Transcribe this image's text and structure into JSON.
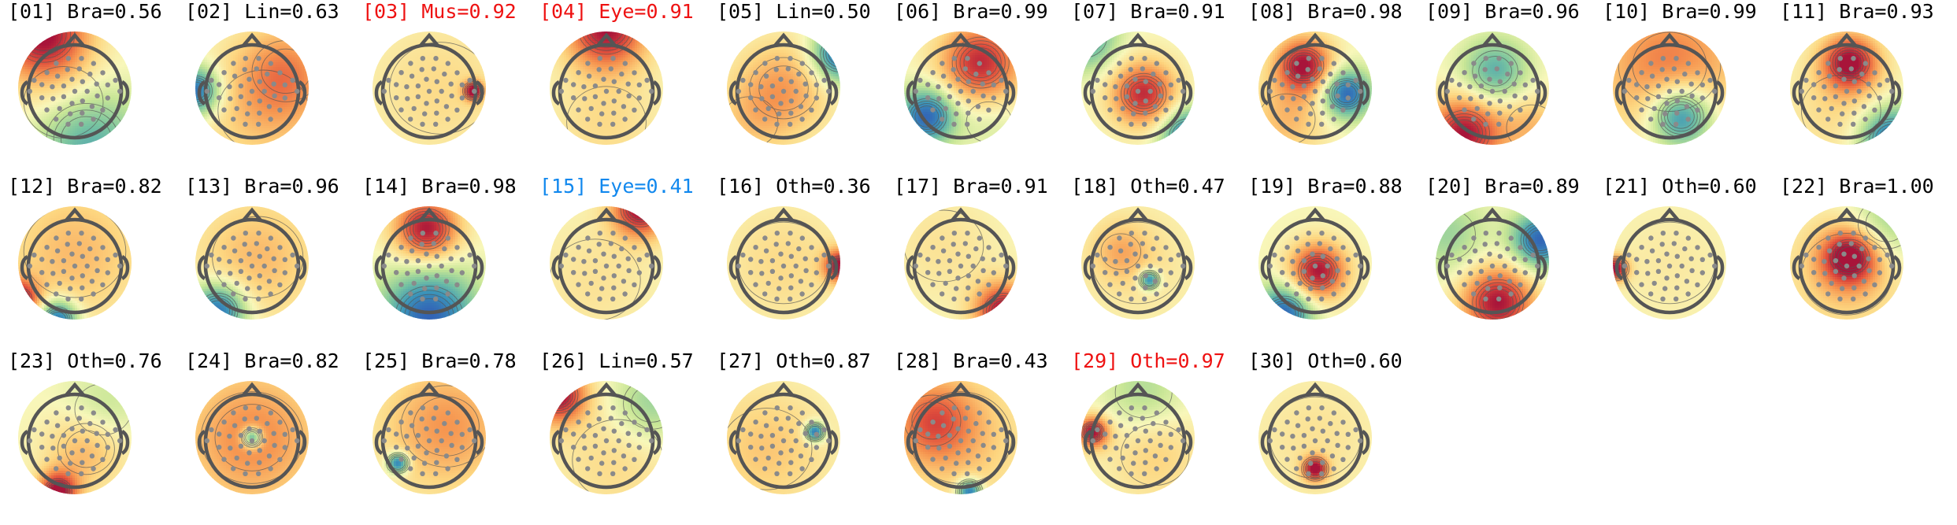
{
  "chart_data": {
    "type": "topomap-grid",
    "title": "",
    "colormap": "Spectral_r",
    "label_colors": {
      "default": "#000000",
      "red": "#ee1111",
      "blue": "#1188ee"
    },
    "components": [
      {
        "label": "[01] Bra=0.56",
        "color": "default",
        "blobs": [
          [
            -0.55,
            -0.95,
            0.55,
            1.0
          ],
          [
            0.2,
            0.9,
            0.7,
            -0.7
          ],
          [
            -0.2,
            0.25,
            0.7,
            0.25
          ]
        ]
      },
      {
        "label": "[02] Lin=0.63",
        "color": "default",
        "blobs": [
          [
            -1.0,
            0.05,
            0.3,
            -1.0
          ],
          [
            0.6,
            -0.3,
            0.6,
            0.45
          ],
          [
            0.2,
            0.4,
            0.8,
            0.3
          ]
        ]
      },
      {
        "label": "[03] Mus=0.92",
        "color": "red",
        "blobs": [
          [
            0.78,
            0.05,
            0.12,
            1.0
          ],
          [
            0.2,
            0,
            0.9,
            0.2
          ]
        ]
      },
      {
        "label": "[04] Eye=0.91",
        "color": "red",
        "blobs": [
          [
            0,
            -1.05,
            0.5,
            1.0
          ],
          [
            0,
            0.6,
            0.7,
            0.2
          ]
        ]
      },
      {
        "label": "[05] Lin=0.50",
        "color": "default",
        "blobs": [
          [
            1.0,
            -0.6,
            0.35,
            -1.0
          ],
          [
            0,
            0,
            0.6,
            0.45
          ],
          [
            -0.6,
            0.6,
            0.5,
            0.2
          ]
        ]
      },
      {
        "label": "[06] Bra=0.99",
        "color": "default",
        "blobs": [
          [
            -0.6,
            0.5,
            0.35,
            -1.0
          ],
          [
            0.35,
            -0.45,
            0.5,
            0.9
          ],
          [
            0.5,
            0.6,
            0.4,
            -0.15
          ]
        ]
      },
      {
        "label": "[07] Bra=0.91",
        "color": "default",
        "blobs": [
          [
            0.1,
            0.1,
            0.4,
            0.9
          ],
          [
            -0.95,
            -0.9,
            0.4,
            -0.7
          ],
          [
            0.9,
            0.85,
            0.35,
            -0.95
          ]
        ]
      },
      {
        "label": "[08] Bra=0.98",
        "color": "default",
        "blobs": [
          [
            -0.2,
            -0.4,
            0.35,
            1.0
          ],
          [
            0.55,
            0.1,
            0.3,
            -1.0
          ],
          [
            -0.5,
            0.55,
            0.5,
            0.35
          ]
        ]
      },
      {
        "label": "[09] Bra=0.96",
        "color": "default",
        "blobs": [
          [
            0.05,
            -0.3,
            0.4,
            -0.6
          ],
          [
            -0.5,
            0.8,
            0.45,
            1.0
          ],
          [
            0.7,
            0.7,
            0.45,
            0.35
          ]
        ]
      },
      {
        "label": "[10] Bra=0.99",
        "color": "default",
        "blobs": [
          [
            0.2,
            0.5,
            0.4,
            -1.0
          ],
          [
            0,
            -0.4,
            0.9,
            0.6
          ]
        ]
      },
      {
        "label": "[11] Bra=0.93",
        "color": "default",
        "blobs": [
          [
            0.05,
            -0.45,
            0.35,
            1.0
          ],
          [
            0.8,
            0.9,
            0.4,
            -1.0
          ],
          [
            -0.1,
            0.4,
            0.7,
            0.2
          ]
        ]
      },
      {
        "label": "[12] Bra=0.82",
        "color": "default",
        "blobs": [
          [
            -1.0,
            0.65,
            0.25,
            1.0
          ],
          [
            -0.3,
            1.0,
            0.25,
            -1.0
          ],
          [
            0,
            -0.2,
            0.9,
            0.35
          ]
        ]
      },
      {
        "label": "[13] Bra=0.96",
        "color": "default",
        "blobs": [
          [
            -0.6,
            0.85,
            0.35,
            -1.0
          ],
          [
            0.1,
            -0.1,
            0.8,
            0.35
          ]
        ]
      },
      {
        "label": "[14] Bra=0.98",
        "color": "default",
        "blobs": [
          [
            -0.05,
            -0.6,
            0.4,
            1.0
          ],
          [
            0,
            0.95,
            0.6,
            -1.0
          ]
        ]
      },
      {
        "label": "[15] Eye=0.41",
        "color": "blue",
        "blobs": [
          [
            0.6,
            -0.95,
            0.35,
            1.0
          ],
          [
            -0.2,
            0.3,
            0.8,
            0.15
          ]
        ]
      },
      {
        "label": "[16] Oth=0.36",
        "color": "default",
        "blobs": [
          [
            1.0,
            0.05,
            0.2,
            1.0
          ],
          [
            0,
            0,
            0.8,
            0.2
          ]
        ]
      },
      {
        "label": "[17] Bra=0.91",
        "color": "default",
        "blobs": [
          [
            0.75,
            0.85,
            0.35,
            1.0
          ],
          [
            -0.3,
            -0.3,
            0.7,
            0.15
          ]
        ]
      },
      {
        "label": "[18] Oth=0.47",
        "color": "default",
        "blobs": [
          [
            0.2,
            0.3,
            0.12,
            -0.9
          ],
          [
            -0.3,
            -0.2,
            0.35,
            0.3
          ],
          [
            0,
            0,
            0.8,
            0.15
          ]
        ]
      },
      {
        "label": "[19] Bra=0.88",
        "color": "default",
        "blobs": [
          [
            0.05,
            0.15,
            0.35,
            1.0
          ],
          [
            -0.55,
            0.9,
            0.35,
            -1.0
          ]
        ]
      },
      {
        "label": "[20] Bra=0.89",
        "color": "default",
        "blobs": [
          [
            0.1,
            0.7,
            0.45,
            1.0
          ],
          [
            0.85,
            -0.4,
            0.35,
            -1.0
          ],
          [
            -0.8,
            -0.5,
            0.5,
            -0.35
          ]
        ]
      },
      {
        "label": "[21] Oth=0.60",
        "color": "default",
        "blobs": [
          [
            -0.95,
            0.1,
            0.15,
            1.0
          ],
          [
            0,
            0,
            0.8,
            0.1
          ]
        ]
      },
      {
        "label": "[22] Bra=1.00",
        "color": "default",
        "blobs": [
          [
            0.05,
            -0.1,
            0.35,
            1.0
          ],
          [
            0.7,
            -0.7,
            0.5,
            -0.4
          ],
          [
            0,
            0.2,
            0.8,
            0.3
          ]
        ]
      },
      {
        "label": "[23] Oth=0.76",
        "color": "default",
        "blobs": [
          [
            -0.3,
            0.95,
            0.25,
            1.0
          ],
          [
            0.2,
            0.2,
            0.5,
            0.4
          ],
          [
            0.5,
            -0.5,
            0.5,
            -0.25
          ]
        ]
      },
      {
        "label": "[24] Bra=0.82",
        "color": "default",
        "blobs": [
          [
            0,
            0,
            0.12,
            -1.0
          ],
          [
            0,
            0,
            0.9,
            0.55
          ]
        ]
      },
      {
        "label": "[25] Bra=0.78",
        "color": "default",
        "blobs": [
          [
            -0.55,
            0.45,
            0.13,
            -1.0
          ],
          [
            0.3,
            -0.2,
            0.8,
            0.5
          ]
        ]
      },
      {
        "label": "[26] Lin=0.57",
        "color": "default",
        "blobs": [
          [
            -0.85,
            -0.75,
            0.35,
            1.0
          ],
          [
            0.8,
            -0.6,
            0.5,
            -0.4
          ],
          [
            0.2,
            0.4,
            0.8,
            0.2
          ]
        ]
      },
      {
        "label": "[27] Oth=0.87",
        "color": "default",
        "blobs": [
          [
            0.55,
            -0.1,
            0.12,
            -1.0
          ],
          [
            -0.3,
            0.2,
            0.8,
            0.3
          ]
        ]
      },
      {
        "label": "[28] Bra=0.43",
        "color": "default",
        "blobs": [
          [
            0.15,
            0.95,
            0.15,
            -1.0
          ],
          [
            -0.5,
            -0.3,
            0.5,
            0.55
          ],
          [
            0,
            0,
            0.9,
            0.3
          ]
        ]
      },
      {
        "label": "[29] Oth=0.97",
        "color": "red",
        "blobs": [
          [
            -0.8,
            -0.1,
            0.2,
            1.0
          ],
          [
            0.1,
            -0.8,
            0.5,
            -0.3
          ],
          [
            0.3,
            0.3,
            0.6,
            0.25
          ]
        ]
      },
      {
        "label": "[30] Oth=0.60",
        "color": "default",
        "blobs": [
          [
            0,
            0.55,
            0.15,
            1.0
          ],
          [
            0,
            0,
            0.8,
            0.15
          ]
        ]
      }
    ]
  }
}
